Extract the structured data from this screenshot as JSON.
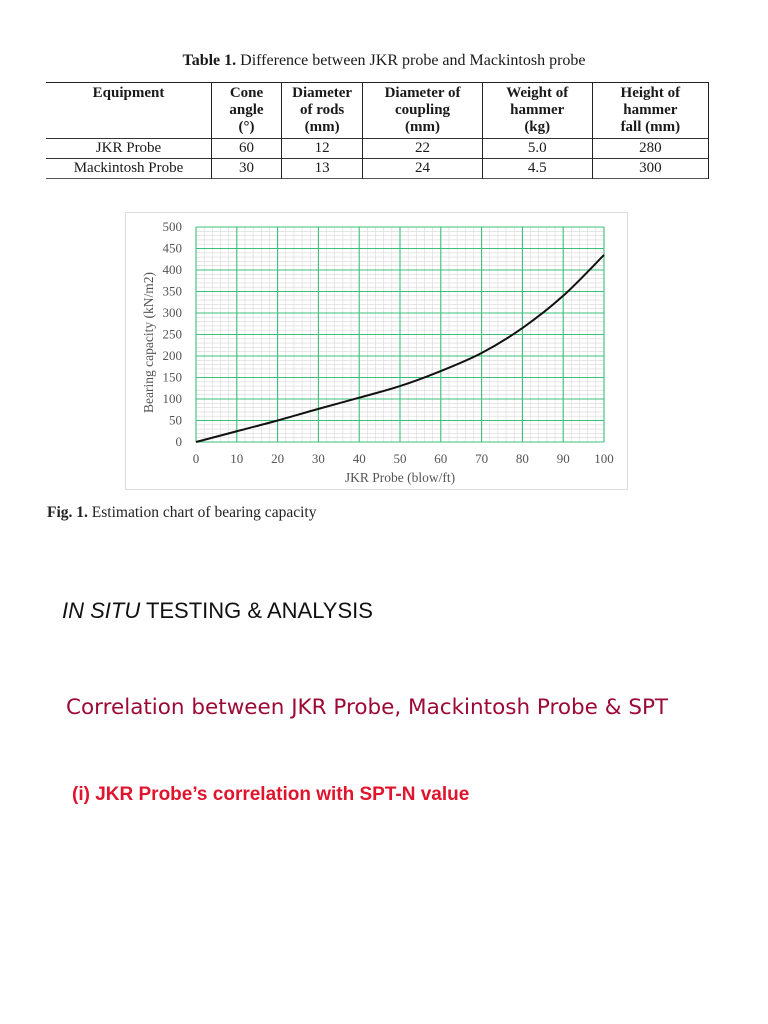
{
  "table": {
    "caption_label": "Table 1.",
    "caption_text": " Difference between JKR probe and Mackintosh probe",
    "headers": [
      [
        "Equipment"
      ],
      [
        "Cone",
        "angle",
        "(°)"
      ],
      [
        "Diameter",
        "of rods",
        "(mm)"
      ],
      [
        "Diameter of",
        "coupling",
        "(mm)"
      ],
      [
        "Weight of",
        "hammer",
        "(kg)"
      ],
      [
        "Height of",
        "hammer",
        "fall (mm)"
      ]
    ],
    "rows": [
      [
        "JKR Probe",
        "60",
        "12",
        "22",
        "5.0",
        "280"
      ],
      [
        "Mackintosh Probe",
        "30",
        "13",
        "24",
        "4.5",
        "300"
      ]
    ]
  },
  "chart_data": {
    "type": "line",
    "title": "",
    "xlabel": "JKR Probe (blow/ft)",
    "ylabel": "Bearing capacity (kN/m2)",
    "x": [
      0,
      10,
      20,
      30,
      40,
      50,
      60,
      70,
      80,
      90,
      100
    ],
    "series": [
      {
        "name": "Bearing capacity",
        "values": [
          0,
          25,
          50,
          77,
          103,
          130,
          165,
          207,
          265,
          340,
          435
        ]
      }
    ],
    "xlim": [
      0,
      100
    ],
    "ylim": [
      0,
      500
    ],
    "xticks": [
      "0",
      "10",
      "20",
      "30",
      "40",
      "50",
      "60",
      "70",
      "80",
      "90",
      "100"
    ],
    "yticks": [
      "0",
      "50",
      "100",
      "150",
      "200",
      "250",
      "300",
      "350",
      "400",
      "450",
      "500"
    ],
    "grid": true,
    "legend": "none",
    "colors": {
      "major_grid": "#3cbf78",
      "minor_grid": "#d8d8dc",
      "line": "#111111",
      "tick_text": "#555555"
    }
  },
  "figure": {
    "caption_label": "Fig. 1.",
    "caption_text": " Estimation chart of bearing capacity"
  },
  "section": {
    "heading_italic": "IN SITU",
    "heading_rest": " TESTING & ANALYSIS"
  },
  "correlation": {
    "heading": "Correlation between JKR Probe, Mackintosh Probe & SPT",
    "subheading": "(i)  JKR Probe’s correlation with SPT-N value",
    "heading_color": "#9c0a35",
    "subheading_color": "#e0142d"
  }
}
